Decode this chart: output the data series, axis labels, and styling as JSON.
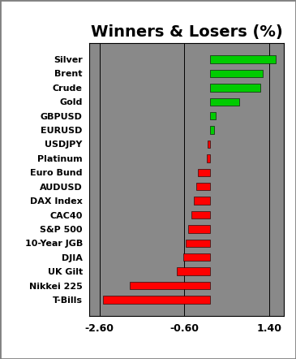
{
  "title": "Winners & Losers (%)",
  "categories": [
    "Silver",
    "Brent",
    "Crude",
    "Gold",
    "GBPUSD",
    "EURUSD",
    "USDJPY",
    "Platinum",
    "Euro Bund",
    "AUDUSD",
    "DAX Index",
    "CAC40",
    "S&P 500",
    "10-Year JGB",
    "DJIA",
    "UK Gilt",
    "Nikkei 225",
    "T-Bills"
  ],
  "values": [
    1.55,
    1.25,
    1.18,
    0.7,
    0.13,
    0.1,
    -0.05,
    -0.08,
    -0.28,
    -0.32,
    -0.38,
    -0.43,
    -0.52,
    -0.57,
    -0.63,
    -0.78,
    -1.88,
    -2.52
  ],
  "color_positive": "#00cc00",
  "color_negative": "#ff0000",
  "xlim": [
    -2.85,
    1.75
  ],
  "xticks": [
    -2.6,
    -0.6,
    1.4
  ],
  "xtick_labels": [
    "-2.60",
    "-0.60",
    "1.40"
  ],
  "bg_color": "#898989",
  "outer_bg": "#ffffff",
  "border_color": "#808080",
  "title_fontsize": 14,
  "label_fontsize": 8,
  "tick_fontsize": 9,
  "bar_height": 0.55
}
